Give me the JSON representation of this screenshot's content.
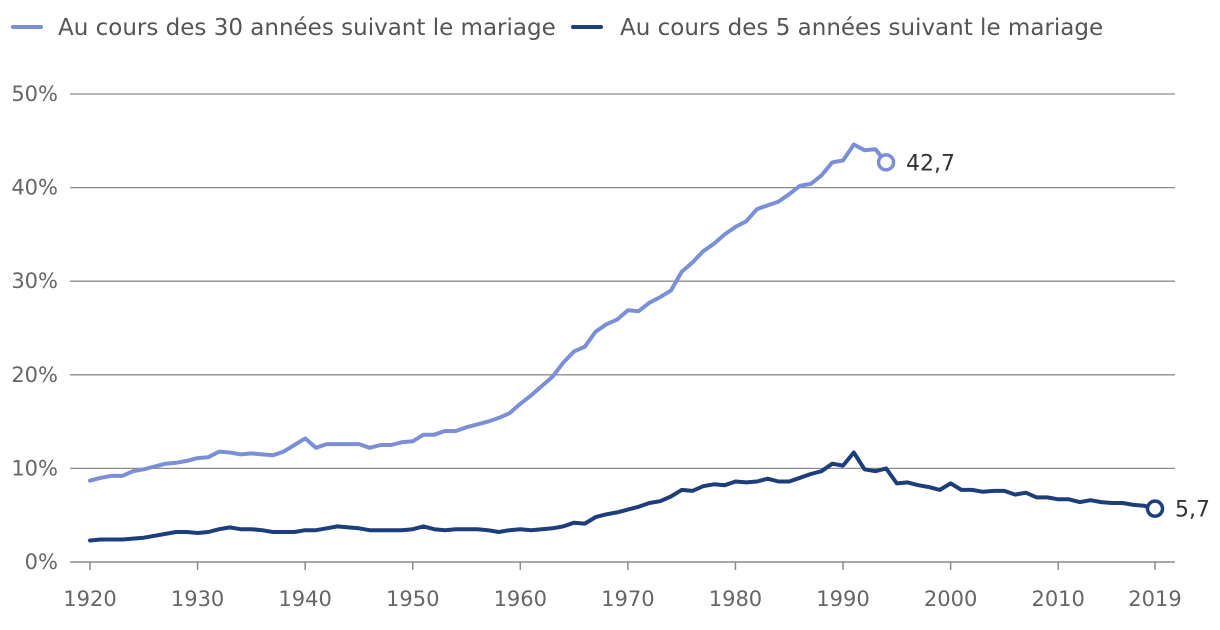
{
  "chart_data": {
    "type": "line",
    "title": "",
    "xlabel": "",
    "ylabel": "",
    "xlim": [
      1920,
      2019
    ],
    "ylim": [
      0,
      50
    ],
    "y_unit": "%",
    "grid": true,
    "legend_position": "top-left",
    "x_ticks": [
      1920,
      1930,
      1940,
      1950,
      1960,
      1970,
      1980,
      1990,
      2000,
      2010,
      2019
    ],
    "x_tick_labels": [
      "1920",
      "1930",
      "1940",
      "1950",
      "1960",
      "1970",
      "1980",
      "1990",
      "2000",
      "2010",
      "2019"
    ],
    "y_ticks": [
      0,
      10,
      20,
      30,
      40,
      50
    ],
    "y_tick_labels": [
      "0%",
      "10%",
      "20%",
      "30%",
      "40%",
      "50%"
    ],
    "series": [
      {
        "name": "Au cours des 30 années suivant le mariage",
        "color": "#7b8fd6",
        "end_label": "42,7",
        "x": [
          1920,
          1921,
          1922,
          1923,
          1924,
          1925,
          1926,
          1927,
          1928,
          1929,
          1930,
          1931,
          1932,
          1933,
          1934,
          1935,
          1936,
          1937,
          1938,
          1939,
          1940,
          1941,
          1942,
          1943,
          1944,
          1945,
          1946,
          1947,
          1948,
          1949,
          1950,
          1951,
          1952,
          1953,
          1954,
          1955,
          1956,
          1957,
          1958,
          1959,
          1960,
          1961,
          1962,
          1963,
          1964,
          1965,
          1966,
          1967,
          1968,
          1969,
          1970,
          1971,
          1972,
          1973,
          1974,
          1975,
          1976,
          1977,
          1978,
          1979,
          1980,
          1981,
          1982,
          1983,
          1984,
          1985,
          1986,
          1987,
          1988,
          1989,
          1990,
          1991,
          1992,
          1993,
          1994
        ],
        "values": [
          8.7,
          9.0,
          9.2,
          9.2,
          9.7,
          9.9,
          10.2,
          10.5,
          10.6,
          10.8,
          11.1,
          11.2,
          11.8,
          11.7,
          11.5,
          11.6,
          11.5,
          11.4,
          11.8,
          12.5,
          13.2,
          12.2,
          12.6,
          12.6,
          12.6,
          12.6,
          12.2,
          12.5,
          12.5,
          12.8,
          12.9,
          13.6,
          13.6,
          14.0,
          14.0,
          14.4,
          14.7,
          15.0,
          15.4,
          15.9,
          16.9,
          17.8,
          18.8,
          19.8,
          21.3,
          22.5,
          23.0,
          24.6,
          25.4,
          25.9,
          26.9,
          26.8,
          27.7,
          28.3,
          29.0,
          31.0,
          32.0,
          33.2,
          34.0,
          35.0,
          35.8,
          36.4,
          37.7,
          38.1,
          38.5,
          39.3,
          40.2,
          40.4,
          41.3,
          42.7,
          42.9,
          44.6,
          44.0,
          44.1,
          42.7
        ]
      },
      {
        "name": "Au cours des 5 années suivant le mariage",
        "color": "#1e3d7b",
        "end_label": "5,7",
        "x": [
          1920,
          1921,
          1922,
          1923,
          1924,
          1925,
          1926,
          1927,
          1928,
          1929,
          1930,
          1931,
          1932,
          1933,
          1934,
          1935,
          1936,
          1937,
          1938,
          1939,
          1940,
          1941,
          1942,
          1943,
          1944,
          1945,
          1946,
          1947,
          1948,
          1949,
          1950,
          1951,
          1952,
          1953,
          1954,
          1955,
          1956,
          1957,
          1958,
          1959,
          1960,
          1961,
          1962,
          1963,
          1964,
          1965,
          1966,
          1967,
          1968,
          1969,
          1970,
          1971,
          1972,
          1973,
          1974,
          1975,
          1976,
          1977,
          1978,
          1979,
          1980,
          1981,
          1982,
          1983,
          1984,
          1985,
          1986,
          1987,
          1988,
          1989,
          1990,
          1991,
          1992,
          1993,
          1994,
          1995,
          1996,
          1997,
          1998,
          1999,
          2000,
          2001,
          2002,
          2003,
          2004,
          2005,
          2006,
          2007,
          2008,
          2009,
          2010,
          2011,
          2012,
          2013,
          2014,
          2015,
          2016,
          2017,
          2018,
          2019
        ],
        "values": [
          2.3,
          2.4,
          2.4,
          2.4,
          2.5,
          2.6,
          2.8,
          3.0,
          3.2,
          3.2,
          3.1,
          3.2,
          3.5,
          3.7,
          3.5,
          3.5,
          3.4,
          3.2,
          3.2,
          3.2,
          3.4,
          3.4,
          3.6,
          3.8,
          3.7,
          3.6,
          3.4,
          3.4,
          3.4,
          3.4,
          3.5,
          3.8,
          3.5,
          3.4,
          3.5,
          3.5,
          3.5,
          3.4,
          3.2,
          3.4,
          3.5,
          3.4,
          3.5,
          3.6,
          3.8,
          4.2,
          4.1,
          4.8,
          5.1,
          5.3,
          5.6,
          5.9,
          6.3,
          6.5,
          7.0,
          7.7,
          7.6,
          8.1,
          8.3,
          8.2,
          8.6,
          8.5,
          8.6,
          8.9,
          8.6,
          8.6,
          9.0,
          9.4,
          9.7,
          10.5,
          10.3,
          11.7,
          9.9,
          9.7,
          10.0,
          8.4,
          8.5,
          8.2,
          8.0,
          7.7,
          8.4,
          7.7,
          7.7,
          7.5,
          7.6,
          7.6,
          7.2,
          7.4,
          6.9,
          6.9,
          6.7,
          6.7,
          6.4,
          6.6,
          6.4,
          6.3,
          6.3,
          6.1,
          6.0,
          5.7
        ]
      }
    ]
  }
}
